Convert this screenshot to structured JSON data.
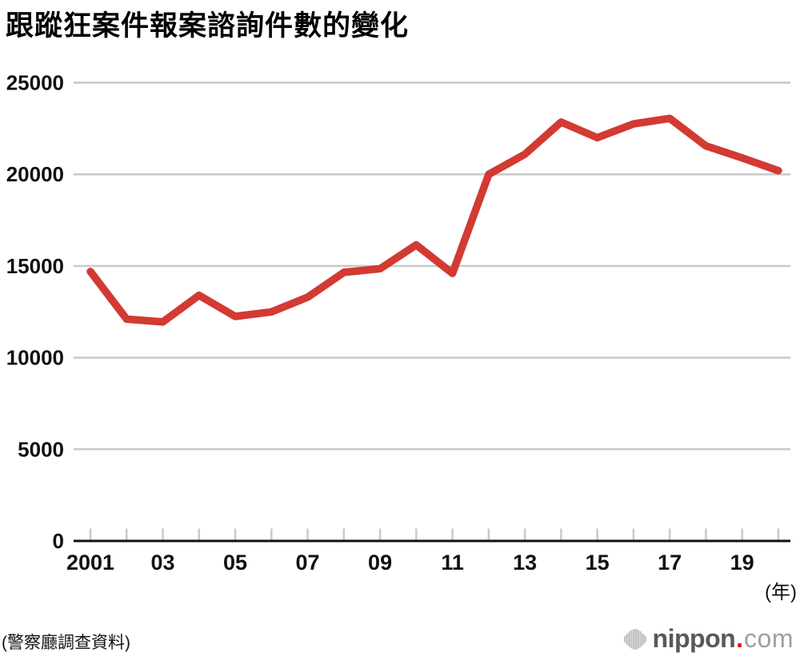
{
  "title": "跟蹤狂案件報案諮詢件數的變化",
  "chart_data": {
    "type": "line",
    "title": "跟蹤狂案件報案諮詢件數的變化",
    "x": [
      2001,
      2002,
      2003,
      2004,
      2005,
      2006,
      2007,
      2008,
      2009,
      2010,
      2011,
      2012,
      2013,
      2014,
      2015,
      2016,
      2017,
      2018,
      2019,
      2020
    ],
    "values": [
      14700,
      12100,
      11950,
      13400,
      12250,
      12500,
      13300,
      14650,
      14850,
      16150,
      14600,
      20000,
      21100,
      22850,
      22000,
      22750,
      23050,
      21550,
      20900,
      20200
    ],
    "ylim": [
      0,
      25000
    ],
    "ytick_step": 5000,
    "ytick_labels": [
      "0",
      "5000",
      "10000",
      "15000",
      "20000",
      "25000"
    ],
    "xtick_labels": [
      {
        "year": 2001,
        "label": "2001"
      },
      {
        "year": 2003,
        "label": "03"
      },
      {
        "year": 2005,
        "label": "05"
      },
      {
        "year": 2007,
        "label": "07"
      },
      {
        "year": 2009,
        "label": "09"
      },
      {
        "year": 2011,
        "label": "11"
      },
      {
        "year": 2013,
        "label": "13"
      },
      {
        "year": 2015,
        "label": "15"
      },
      {
        "year": 2017,
        "label": "17"
      },
      {
        "year": 2019,
        "label": "19"
      }
    ],
    "x_unit_label": "(年)",
    "grid": "horizontal",
    "legend": "none",
    "line_color": "#d23a32",
    "grid_color": "#c9c9c9",
    "axis_color": "#111111"
  },
  "footer": {
    "source": "(警察廳調查資料)",
    "logo": {
      "name": "nippon",
      "dot": ".",
      "tld": "com"
    }
  }
}
